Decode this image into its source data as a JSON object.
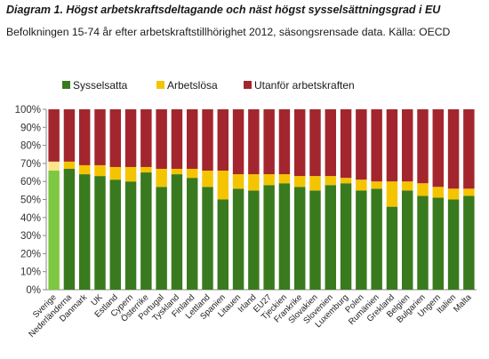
{
  "title": "Diagram 1. Högst arbetskraftsdeltagande och näst högst sysselsättningsgrad i EU",
  "subtitle": "Befolkningen 15-74 år efter arbetskraftstillhörighet 2012, säsongsrensade data. Källa: OECD",
  "colors": {
    "employed": "#3a7a1e",
    "employed_highlight": "#7dc742",
    "unemployed": "#f5c400",
    "unemployed_highlight": "#fde58a",
    "outside": "#a3262e"
  },
  "chart_data": {
    "type": "bar",
    "stacked": true,
    "percent_stacked": true,
    "ylim": [
      0,
      100
    ],
    "yticks": [
      "0%",
      "10%",
      "20%",
      "30%",
      "40%",
      "50%",
      "60%",
      "70%",
      "80%",
      "90%",
      "100%"
    ],
    "legend_position": "top",
    "grid": false,
    "highlight_category": "Sverige",
    "categories": [
      "Sverige",
      "Nederländerna",
      "Danmark",
      "UK",
      "Estland",
      "Cypern",
      "Österrike",
      "Portugal",
      "Tyskland",
      "Finland",
      "Lettland",
      "Spanien",
      "Litauen",
      "Irland",
      "EU27",
      "Tjeckien",
      "Frankrike",
      "Slovakien",
      "Slovenien",
      "Luxemburg",
      "Polen",
      "Rumänien",
      "Grekland",
      "Belgien",
      "Bulgarien",
      "Ungern",
      "Italien",
      "Malta"
    ],
    "series": [
      {
        "name": "Sysselsatta",
        "values": [
          66,
          67,
          64,
          63,
          61,
          60,
          65,
          57,
          64,
          62,
          57,
          50,
          56,
          55,
          58,
          59,
          57,
          55,
          58,
          59,
          55,
          56,
          46,
          55,
          52,
          51,
          50,
          52
        ]
      },
      {
        "name": "Arbetslösa",
        "values": [
          5,
          4,
          5,
          6,
          7,
          8,
          3,
          10,
          3,
          5,
          9,
          16,
          8,
          9,
          6,
          5,
          6,
          8,
          5,
          3,
          6,
          4,
          14,
          5,
          7,
          6,
          6,
          4
        ]
      },
      {
        "name": "Utanför arbetskraften",
        "values": [
          29,
          29,
          31,
          31,
          32,
          32,
          32,
          33,
          33,
          33,
          34,
          34,
          36,
          36,
          36,
          36,
          37,
          37,
          37,
          38,
          39,
          40,
          40,
          40,
          41,
          43,
          44,
          44
        ]
      }
    ]
  }
}
